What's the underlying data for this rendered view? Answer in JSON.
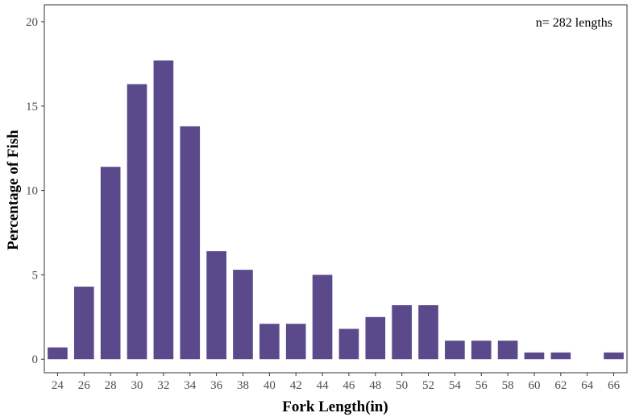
{
  "chart_data": {
    "type": "bar",
    "categories": [
      "24",
      "26",
      "28",
      "30",
      "32",
      "34",
      "36",
      "38",
      "40",
      "42",
      "44",
      "46",
      "48",
      "50",
      "52",
      "54",
      "56",
      "58",
      "60",
      "62",
      "66"
    ],
    "x_ticks": [
      "24",
      "26",
      "28",
      "30",
      "32",
      "34",
      "36",
      "38",
      "40",
      "42",
      "44",
      "46",
      "48",
      "50",
      "52",
      "54",
      "56",
      "58",
      "60",
      "62",
      "64",
      "66"
    ],
    "x": [
      24,
      26,
      28,
      30,
      32,
      34,
      36,
      38,
      40,
      42,
      44,
      46,
      48,
      50,
      52,
      54,
      56,
      58,
      60,
      62,
      66
    ],
    "values": [
      0.7,
      4.3,
      11.4,
      16.3,
      17.7,
      13.8,
      6.4,
      5.3,
      2.1,
      2.1,
      5.0,
      1.8,
      2.5,
      3.2,
      3.2,
      1.1,
      1.1,
      1.1,
      0.4,
      0.4,
      0.4
    ],
    "y_ticks": [
      "0",
      "5",
      "10",
      "15",
      "20"
    ],
    "xlabel": "Fork Length(in)",
    "ylabel": "Percentage of Fish",
    "annotation": "n= 282 lengths",
    "xlim": [
      23,
      67
    ],
    "ylim": [
      -0.8,
      21
    ],
    "grid": false,
    "bar_color": "#5b4a8b"
  }
}
